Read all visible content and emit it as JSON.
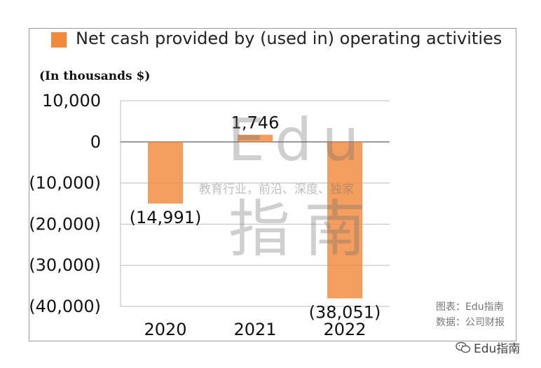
{
  "legend": {
    "label": "Net cash provided by (used in) operating activities",
    "color": "#f28a3c"
  },
  "unit_label": "(In thousands $)",
  "watermark": {
    "edu": "Edu",
    "tagline": "教育行业，前沿、深度、独家",
    "zhinan": "指南"
  },
  "credits": {
    "chart": "图表：Edu指南",
    "data": "数据：公司财报"
  },
  "brand": "Edu指南",
  "chart_data": {
    "type": "bar",
    "categories": [
      "2020",
      "2021",
      "2022"
    ],
    "series": [
      {
        "name": "Net cash provided by (used in) operating activities",
        "values": [
          -14991,
          1746,
          -38051
        ],
        "color": "#f28a3c"
      }
    ],
    "value_labels": [
      "(14,991)",
      "1,746",
      "(38,051)"
    ],
    "yticks": [
      10000,
      0,
      -10000,
      -20000,
      -30000,
      -40000
    ],
    "ytick_labels": [
      "10,000",
      "0",
      "(10,000)",
      "(20,000)",
      "(30,000)",
      "(40,000)"
    ],
    "ylim": [
      -40000,
      10000
    ],
    "ylabel": "(In thousands $)",
    "grid": true,
    "legend_position": "top"
  }
}
